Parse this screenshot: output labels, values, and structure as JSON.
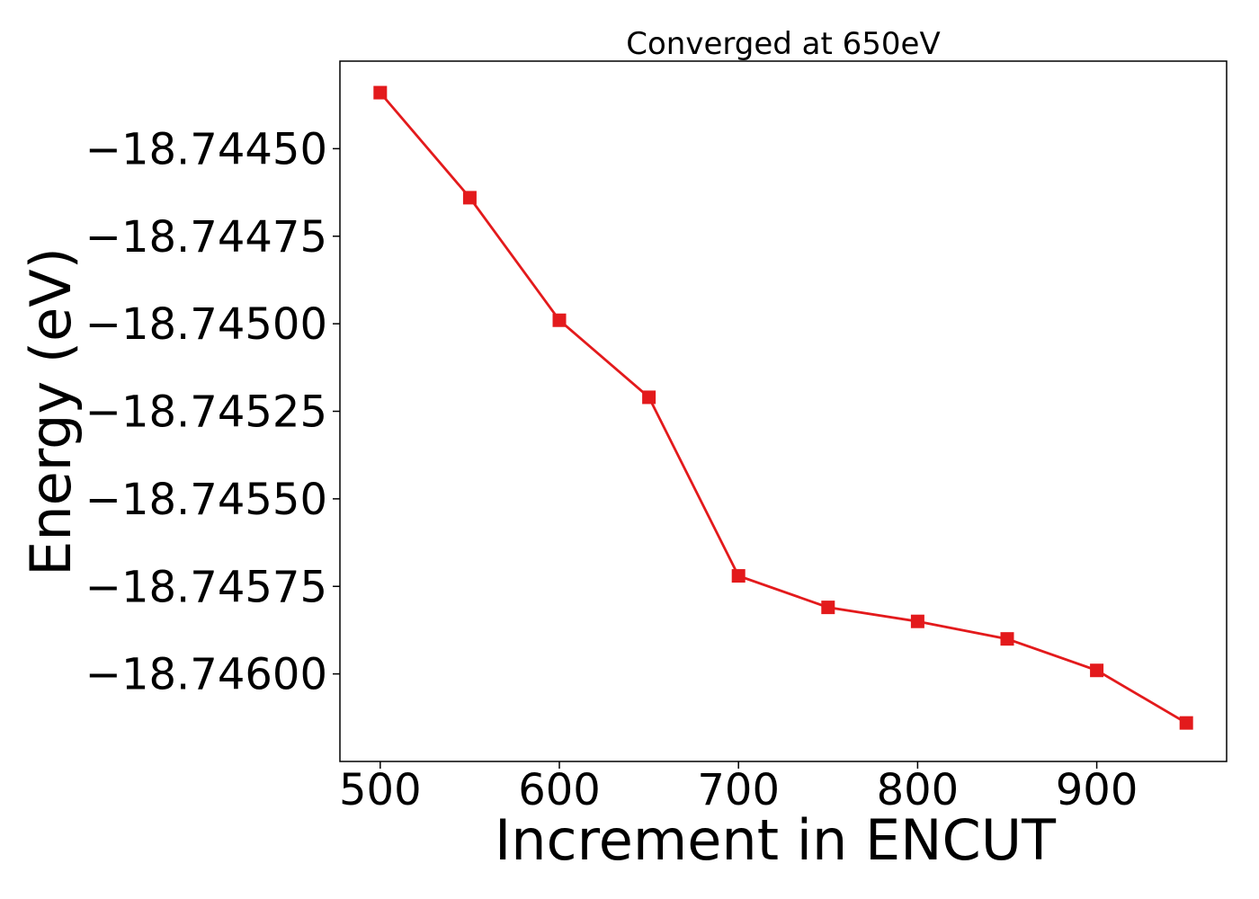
{
  "chart_data": {
    "type": "line",
    "title": "Converged at 650eV",
    "xlabel": "Increment in ENCUT",
    "ylabel": "Energy (eV)",
    "x": [
      500,
      550,
      600,
      650,
      700,
      750,
      800,
      850,
      900,
      950
    ],
    "series": [
      {
        "values": [
          -18.74434,
          -18.74464,
          -18.74499,
          -18.74521,
          -18.74572,
          -18.74581,
          -18.74585,
          -18.7459,
          -18.74599,
          -18.74614
        ]
      }
    ],
    "xticks": [
      500,
      600,
      700,
      800,
      900
    ],
    "xtick_labels": [
      "500",
      "600",
      "700",
      "800",
      "900"
    ],
    "yticks": [
      -18.7445,
      -18.74475,
      -18.745,
      -18.74525,
      -18.7455,
      -18.74575,
      -18.746
    ],
    "ytick_labels": [
      "−18.74450",
      "−18.74475",
      "−18.74500",
      "−18.74525",
      "−18.74550",
      "−18.74575",
      "−18.74600"
    ],
    "xlim": [
      477.5,
      972.5
    ],
    "ylim": [
      -18.74625,
      -18.74425
    ],
    "grid": false,
    "legend": false,
    "marker": "square",
    "colors": {
      "line": "#e31a1c",
      "marker": "#e31a1c",
      "axes": "#000000"
    }
  }
}
